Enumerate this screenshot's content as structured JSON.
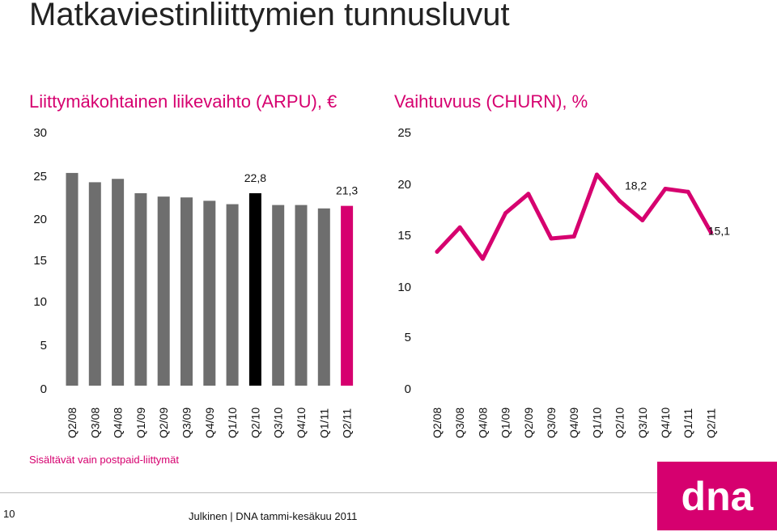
{
  "slide": {
    "title": "Matkaviestinliittymien tunnusluvut",
    "note": "Sisältävät vain postpaid-liittymät",
    "page_number": "10",
    "footer": "Julkinen | DNA tammi-kesäkuu 2011",
    "logo_text": "dna"
  },
  "colors": {
    "accent": "#d6006f",
    "bar_gray": "#6e6e6e",
    "bar_highlight": "#000000"
  },
  "chart_data": [
    {
      "type": "bar",
      "title": "Liittymäkohtainen liikevaihto (ARPU), €",
      "categories": [
        "Q2/08",
        "Q3/08",
        "Q4/08",
        "Q1/09",
        "Q2/09",
        "Q3/09",
        "Q4/09",
        "Q1/10",
        "Q2/10",
        "Q3/10",
        "Q4/10",
        "Q1/11",
        "Q2/11"
      ],
      "values": [
        25.2,
        24.1,
        24.5,
        22.8,
        22.4,
        22.3,
        21.9,
        21.5,
        22.8,
        21.4,
        21.4,
        21.0,
        21.3
      ],
      "highlight": {
        "Q2/10": "black",
        "Q2/11": "accent"
      },
      "data_labels": {
        "Q2/10": "22,8",
        "Q2/11": "21,3"
      },
      "ylim": [
        0,
        30
      ],
      "yticks": [
        "0",
        "5",
        "10",
        "15",
        "20",
        "25",
        "30"
      ],
      "grid": false
    },
    {
      "type": "line",
      "title": "Vaihtuvuus (CHURN), %",
      "categories": [
        "Q2/08",
        "Q3/08",
        "Q4/08",
        "Q1/09",
        "Q2/09",
        "Q3/09",
        "Q4/09",
        "Q1/10",
        "Q2/10",
        "Q3/10",
        "Q4/10",
        "Q1/11",
        "Q2/11"
      ],
      "values": [
        13.2,
        15.6,
        12.5,
        17.0,
        18.9,
        14.5,
        14.7,
        20.8,
        18.2,
        16.3,
        19.4,
        19.1,
        15.1
      ],
      "data_labels": {
        "Q2/10": "18,2",
        "Q2/11": "15,1"
      },
      "ylim": [
        0,
        25
      ],
      "yticks": [
        "0",
        "5",
        "10",
        "15",
        "20",
        "25"
      ],
      "grid": false
    }
  ]
}
